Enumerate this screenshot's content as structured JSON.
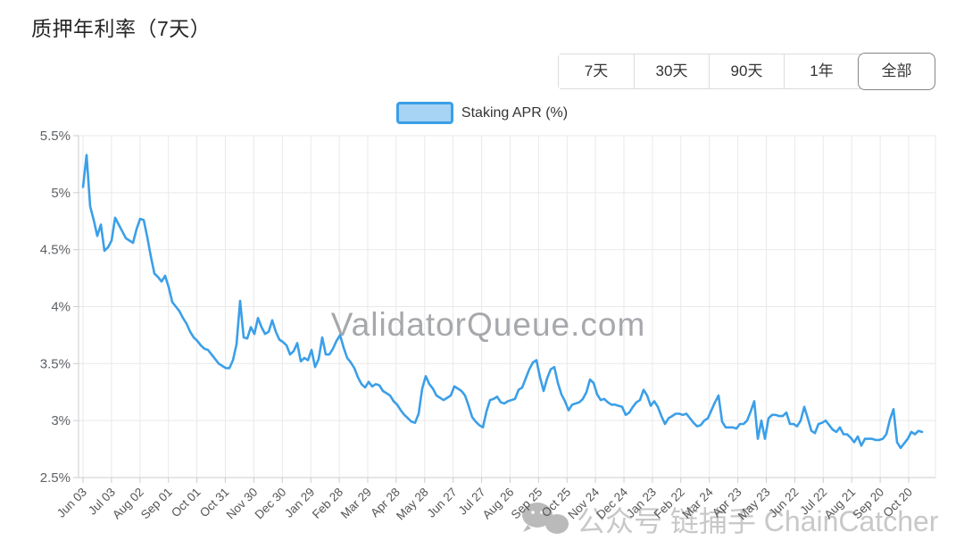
{
  "header": {
    "title": "质押年利率（7天）"
  },
  "range_buttons": {
    "options": [
      "7天",
      "30天",
      "90天",
      "1年",
      "全部"
    ],
    "selected": "全部"
  },
  "legend": {
    "label": "Staking APR (%)",
    "swatch_fill": "#a7d3f4",
    "swatch_border": "#3b9fe8"
  },
  "watermarks": {
    "center": "ValidatorQueue.com",
    "bottom": "公众号 链捕手 ChainCatcher",
    "bottom_icon": "wechat-icon"
  },
  "colors": {
    "line": "#3b9fe8",
    "grid": "#e9e9e9",
    "axis": "#cccccc",
    "y_label": "#5d6166",
    "x_label": "#555555",
    "watermark_center": "#97999e",
    "watermark_bottom": "#c8c8c8"
  },
  "chart_data": {
    "type": "line",
    "title": "质押年利率（7天）",
    "xlabel": "",
    "ylabel": "Staking APR (%)",
    "ylim": [
      2.5,
      5.5
    ],
    "grid": true,
    "legend_position": "top-center",
    "y_ticks": [
      5.5,
      5.0,
      4.5,
      4.0,
      3.5,
      3.0,
      2.5
    ],
    "y_tick_labels": [
      "5.5%",
      "5%",
      "4.5%",
      "4%",
      "3.5%",
      "3%",
      "2.5%"
    ],
    "x_tick_labels": [
      "Jun 03",
      "Jul 03",
      "Aug 02",
      "Sep 01",
      "Oct 01",
      "Oct 31",
      "Nov 30",
      "Dec 30",
      "Jan 29",
      "Feb 28",
      "Mar 29",
      "Apr 28",
      "May 28",
      "Jun 27",
      "Jul 27",
      "Aug 26",
      "Sep 25",
      "Oct 25",
      "Nov 24",
      "Dec 24",
      "Jan 23",
      "Feb 22",
      "Mar 24",
      "Apr 23",
      "May 23",
      "Jun 22",
      "Jul 22",
      "Aug 21",
      "Sep 20",
      "Oct 20"
    ],
    "series": [
      {
        "name": "Staking APR (%)",
        "color": "#3b9fe8",
        "values": [
          5.05,
          5.33,
          4.88,
          4.76,
          4.62,
          4.72,
          4.49,
          4.52,
          4.58,
          4.78,
          4.72,
          4.66,
          4.6,
          4.58,
          4.56,
          4.68,
          4.77,
          4.76,
          4.61,
          4.44,
          4.29,
          4.26,
          4.22,
          4.27,
          4.17,
          4.04,
          4.0,
          3.96,
          3.9,
          3.85,
          3.78,
          3.73,
          3.7,
          3.66,
          3.63,
          3.62,
          3.58,
          3.54,
          3.5,
          3.48,
          3.46,
          3.46,
          3.53,
          3.67,
          4.05,
          3.73,
          3.72,
          3.82,
          3.76,
          3.9,
          3.82,
          3.76,
          3.78,
          3.88,
          3.78,
          3.71,
          3.69,
          3.66,
          3.58,
          3.61,
          3.68,
          3.52,
          3.55,
          3.53,
          3.62,
          3.47,
          3.54,
          3.73,
          3.58,
          3.58,
          3.63,
          3.7,
          3.75,
          3.64,
          3.55,
          3.51,
          3.46,
          3.38,
          3.32,
          3.29,
          3.34,
          3.3,
          3.32,
          3.31,
          3.26,
          3.24,
          3.22,
          3.17,
          3.14,
          3.09,
          3.05,
          3.02,
          2.99,
          2.98,
          3.06,
          3.28,
          3.39,
          3.32,
          3.28,
          3.22,
          3.2,
          3.18,
          3.2,
          3.22,
          3.3,
          3.28,
          3.26,
          3.22,
          3.13,
          3.03,
          2.99,
          2.96,
          2.94,
          3.08,
          3.18,
          3.19,
          3.21,
          3.16,
          3.15,
          3.17,
          3.18,
          3.19,
          3.27,
          3.29,
          3.37,
          3.45,
          3.51,
          3.53,
          3.38,
          3.26,
          3.37,
          3.45,
          3.47,
          3.33,
          3.23,
          3.17,
          3.09,
          3.14,
          3.15,
          3.16,
          3.19,
          3.25,
          3.36,
          3.33,
          3.23,
          3.18,
          3.19,
          3.16,
          3.14,
          3.14,
          3.13,
          3.12,
          3.05,
          3.07,
          3.12,
          3.16,
          3.18,
          3.27,
          3.22,
          3.13,
          3.17,
          3.12,
          3.04,
          2.97,
          3.02,
          3.04,
          3.06,
          3.06,
          3.05,
          3.06,
          3.02,
          2.98,
          2.95,
          2.96,
          3.0,
          3.02,
          3.09,
          3.16,
          3.22,
          2.99,
          2.94,
          2.94,
          2.94,
          2.93,
          2.97,
          2.97,
          3.0,
          3.08,
          3.17,
          2.84,
          3.0,
          2.84,
          3.02,
          3.05,
          3.05,
          3.04,
          3.04,
          3.07,
          2.97,
          2.97,
          2.95,
          3.0,
          3.12,
          3.02,
          2.91,
          2.89,
          2.97,
          2.98,
          3.0,
          2.96,
          2.92,
          2.9,
          2.94,
          2.88,
          2.88,
          2.85,
          2.81,
          2.86,
          2.78,
          2.84,
          2.84,
          2.84,
          2.83,
          2.83,
          2.84,
          2.88,
          3.01,
          3.1,
          2.81,
          2.76,
          2.8,
          2.84,
          2.9,
          2.88,
          2.91,
          2.9
        ]
      }
    ]
  }
}
